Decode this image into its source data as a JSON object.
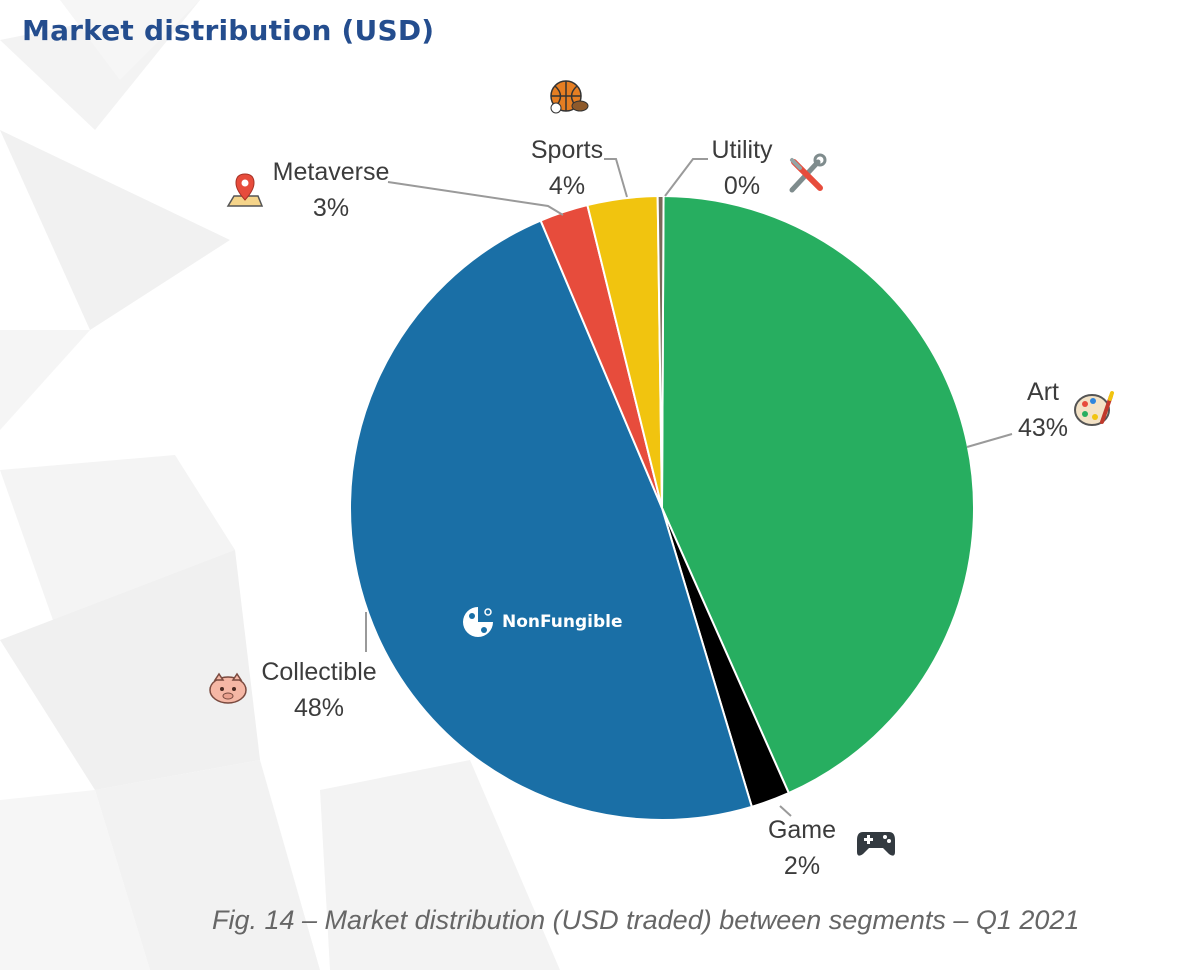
{
  "header": {
    "title": "Market distribution (USD)"
  },
  "caption": "Fig. 14 – Market distribution (USD traded) between segments – Q1 2021",
  "watermark": {
    "brand": "NonFungible"
  },
  "chart_data": {
    "type": "pie",
    "title": "Market distribution (USD)",
    "slices": [
      {
        "name": "Art",
        "value": 43,
        "label": "43%",
        "color": "#27ae60",
        "icon": "palette-icon"
      },
      {
        "name": "Game",
        "value": 2,
        "label": "2%",
        "color": "#000000",
        "icon": "gamepad-icon"
      },
      {
        "name": "Collectible",
        "value": 48,
        "label": "48%",
        "color": "#1a6fa6",
        "icon": "piggy-icon"
      },
      {
        "name": "Metaverse",
        "value": 2.5,
        "label": "3%",
        "color": "#e74c3c",
        "icon": "map-pin-icon"
      },
      {
        "name": "Sports",
        "value": 3.6,
        "label": "4%",
        "color": "#f1c40f",
        "icon": "sports-ball-icon"
      },
      {
        "name": "Utility",
        "value": 0.3,
        "label": "0%",
        "color": "#7a6a5a",
        "icon": "tools-icon"
      }
    ]
  }
}
